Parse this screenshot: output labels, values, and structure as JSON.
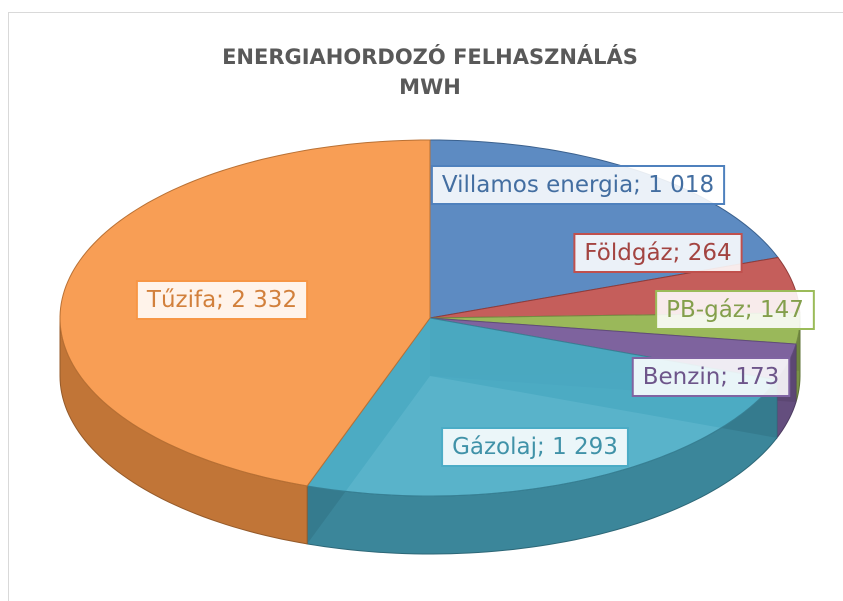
{
  "chart_data": {
    "type": "pie",
    "title_lines": [
      "ENERGIAHORDOZÓ FELHASZNÁLÁS",
      "MWH"
    ],
    "categories": [
      "Villamos energia",
      "Földgáz",
      "PB-gáz",
      "Benzin",
      "Gázolaj",
      "Tűzifa"
    ],
    "values": [
      1018,
      264,
      147,
      173,
      1293,
      2332
    ],
    "value_labels": [
      "1 018",
      "264",
      "147",
      "173",
      "1 293",
      "2 332"
    ],
    "label_separator": "; ",
    "colors": [
      "#4f81bd",
      "#c0504d",
      "#9bbb59",
      "#8064a2",
      "#4bacc6",
      "#f79646"
    ],
    "three_d": true
  }
}
